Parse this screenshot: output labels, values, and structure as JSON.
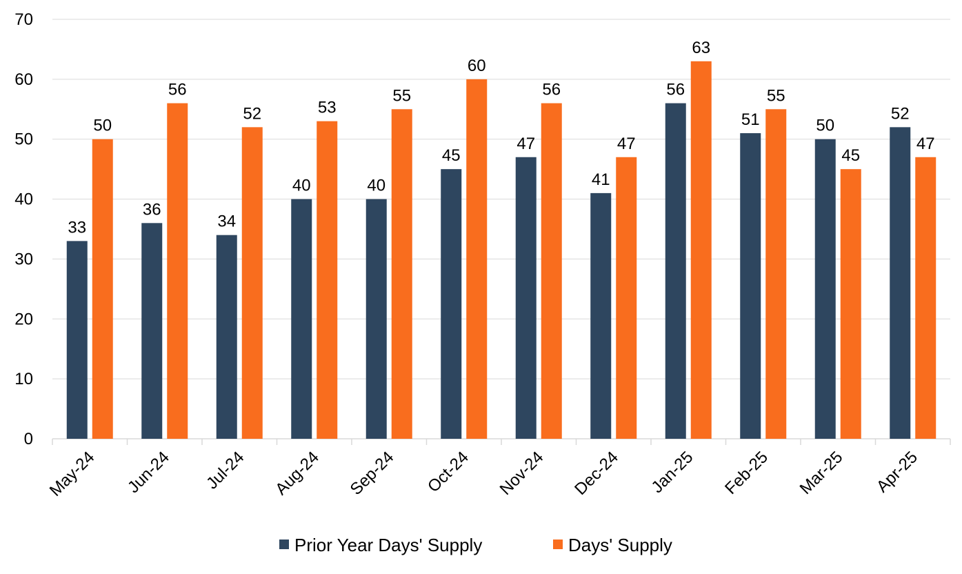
{
  "chart_data": {
    "type": "bar",
    "title": "",
    "xlabel": "",
    "ylabel": "",
    "ylim": [
      0,
      70
    ],
    "yticks": [
      0,
      10,
      20,
      30,
      40,
      50,
      60,
      70
    ],
    "grid": true,
    "legend_position": "bottom",
    "categories": [
      "May-24",
      "Jun-24",
      "Jul-24",
      "Aug-24",
      "Sep-24",
      "Oct-24",
      "Nov-24",
      "Dec-24",
      "Jan-25",
      "Feb-25",
      "Mar-25",
      "Apr-25"
    ],
    "series": [
      {
        "name": "Prior Year Days' Supply",
        "color": "#2E465F",
        "values": [
          33,
          36,
          34,
          40,
          40,
          45,
          47,
          41,
          56,
          51,
          50,
          52
        ]
      },
      {
        "name": "Days' Supply",
        "color": "#F96D1E",
        "values": [
          50,
          56,
          52,
          53,
          55,
          60,
          56,
          47,
          63,
          55,
          45,
          47
        ]
      }
    ]
  }
}
